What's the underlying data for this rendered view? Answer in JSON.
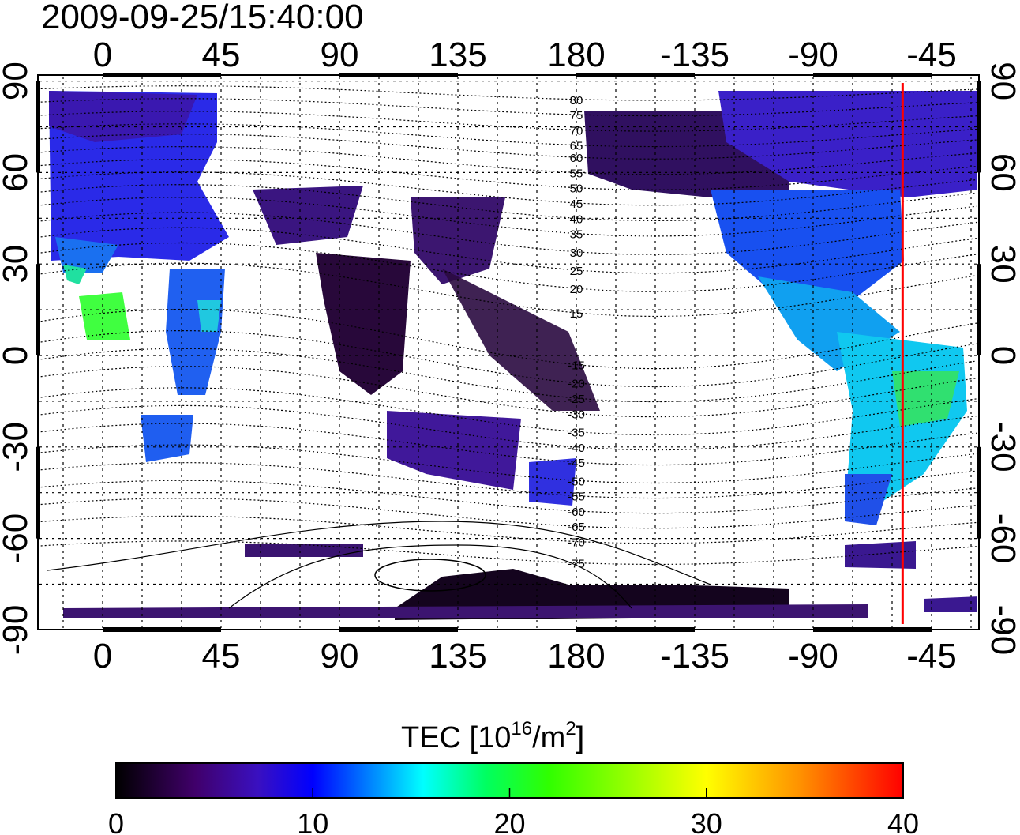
{
  "title": "2009-09-25/15:40:00",
  "map": {
    "lon_ticks": [
      "0",
      "45",
      "90",
      "135",
      "180",
      "-135",
      "-90",
      "-45"
    ],
    "lon_values": [
      0,
      45,
      90,
      135,
      180,
      225,
      270,
      315
    ],
    "lat_ticks": [
      "90",
      "60",
      "30",
      "0",
      "-30",
      "-60",
      "-90"
    ],
    "lat_values": [
      90,
      60,
      30,
      0,
      -30,
      -60,
      -90
    ],
    "lon_range": [
      -25,
      333
    ],
    "lat_range": [
      -92,
      92
    ],
    "marker_line_lon": -56,
    "marker_line_color": "#ff0000",
    "maglat_labels": [
      "80",
      "75",
      "70",
      "65",
      "60",
      "55",
      "50",
      "45",
      "40",
      "35",
      "30",
      "25",
      "20",
      "15",
      "-15",
      "-20",
      "-25",
      "-30",
      "-35",
      "-40",
      "-45",
      "-50",
      "-55",
      "-60",
      "-65",
      "-70",
      "-75"
    ],
    "maglat_label_lat": [
      84,
      79,
      74,
      69,
      65,
      60,
      55,
      50,
      45,
      40,
      34,
      28,
      22,
      14,
      -3,
      -9,
      -14,
      -19,
      -25,
      -30,
      -35,
      -41,
      -46,
      -51,
      -56,
      -61,
      -68
    ]
  },
  "colorbar": {
    "label_prefix": "TEC  [10",
    "label_exp1": "16",
    "label_mid": "/m",
    "label_exp2": "2",
    "label_suffix": "]",
    "ticks": [
      "0",
      "10",
      "20",
      "30",
      "40"
    ],
    "range": [
      0,
      40
    ],
    "stops": [
      "#000000",
      "#40006a",
      "#3a10c0",
      "#0000ff",
      "#0090ff",
      "#00ffff",
      "#00ff60",
      "#30ff00",
      "#ffff00",
      "#ff9000",
      "#ff0000"
    ]
  }
}
